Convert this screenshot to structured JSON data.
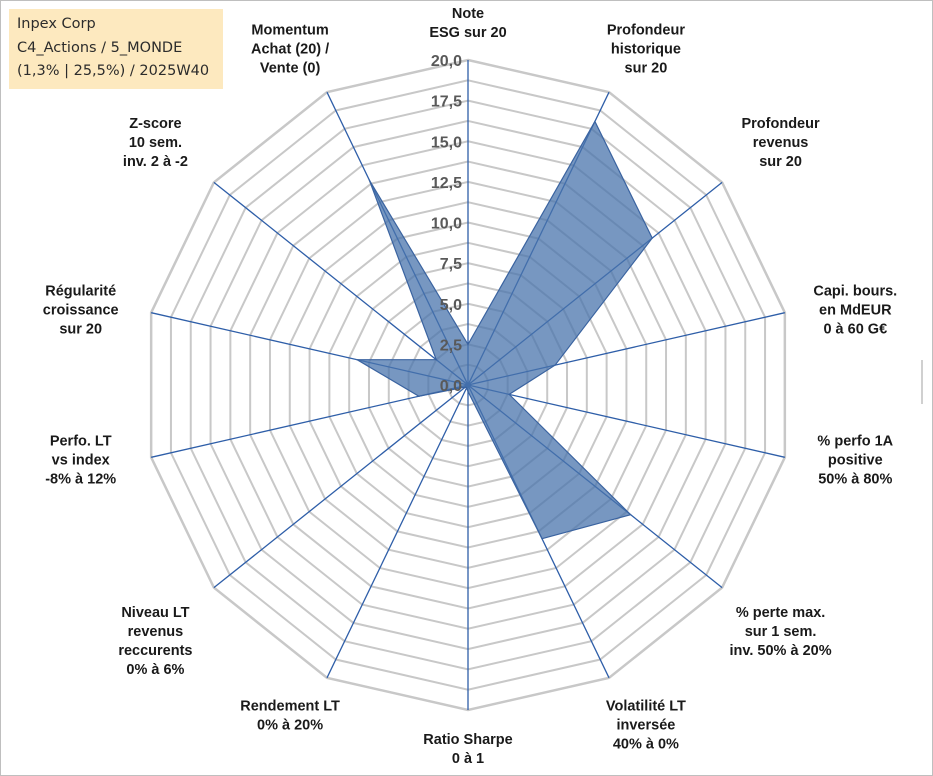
{
  "title_box": {
    "line1": "Inpex Corp",
    "line2": "C4_Actions / 5_MONDE",
    "line3": "(1,3% | 25,5%) / 2025W40"
  },
  "chart_data": {
    "type": "radar",
    "rmin": 0,
    "rmax": 20,
    "tick_values": [
      0,
      2.5,
      5,
      7.5,
      10,
      12.5,
      15,
      17.5,
      20
    ],
    "tick_labels": [
      "0,0",
      "2,5",
      "5,0",
      "7,5",
      "10,0",
      "12,5",
      "15,0",
      "17,5",
      "20,0"
    ],
    "categories": [
      [
        "Note",
        "ESG sur 20"
      ],
      [
        "Profondeur",
        "historique",
        "sur 20"
      ],
      [
        "Profondeur",
        "revenus",
        "sur 20"
      ],
      [
        "Capi. bours.",
        "en MdEUR",
        "0 à 60 G€"
      ],
      [
        "% perfo 1A",
        "positive",
        "50% à 80%"
      ],
      [
        "% perte max.",
        "sur 1 sem.",
        "inv. 50% à 20%"
      ],
      [
        "Volatilité LT",
        "inversée",
        "40% à 0%"
      ],
      [
        "Ratio Sharpe",
        "0 à 1"
      ],
      [
        "Rendement LT",
        "0% à 20%"
      ],
      [
        "Niveau LT",
        "revenus",
        "reccurents",
        "0% à 6%"
      ],
      [
        "Perfo. LT",
        "vs index",
        "-8% à 12%"
      ],
      [
        "Régularité",
        "croissance",
        "sur 20"
      ],
      [
        "Z-score",
        "10 sem.",
        "inv. 2 à -2"
      ],
      [
        "Momentum",
        "Achat (20) /",
        "Vente (0)"
      ]
    ],
    "values": [
      2.5,
      18.0,
      14.5,
      5.5,
      2.6,
      12.8,
      10.5,
      0.4,
      0.2,
      0.2,
      3.1,
      7.0,
      2.5,
      14.0
    ],
    "grid": true,
    "colors": {
      "fill": "#4a74ac",
      "fill_opacity": 0.75,
      "stroke": "#3a63a0",
      "grid": "#c8c8c8",
      "spokes": "#2e5ea8"
    }
  }
}
